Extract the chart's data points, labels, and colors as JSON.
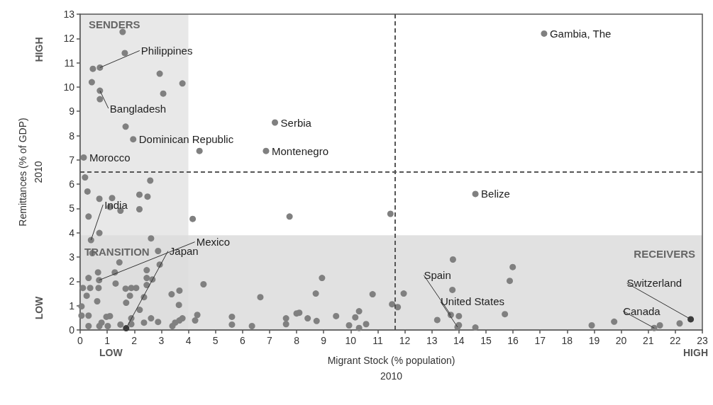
{
  "chart_data": {
    "type": "scatter",
    "xlabel": "Migrant Stock (% population)\n2010",
    "ylabel": "Remittances (% of GDP)\n2010",
    "xlim": [
      0,
      23
    ],
    "xticks": [
      0,
      1,
      2,
      3,
      4,
      5,
      6,
      7,
      8,
      9,
      10,
      11,
      12,
      13,
      14,
      15,
      16,
      17,
      18,
      19,
      20,
      21,
      22,
      23
    ],
    "ylim": [
      0,
      13
    ],
    "yticks": [
      0,
      1,
      2,
      3,
      4,
      5,
      6,
      7,
      8,
      9,
      10,
      11,
      12,
      13
    ],
    "grid": false,
    "marker": "circle",
    "series": [
      {
        "color": "#808080",
        "x": [
          1.57,
          1.65,
          0.47,
          0.73,
          0.43,
          2.94,
          3.78,
          0.73,
          0.73,
          3.07,
          1.68,
          1.96,
          4.41,
          7.2,
          6.87,
          17.15,
          0.13,
          0.18,
          2.59,
          0.27,
          0.71,
          1.18,
          2.19,
          2.49,
          1.1,
          1.49,
          2.19,
          0.31,
          4.16,
          7.74,
          0.71,
          2.62,
          0.4,
          0.45,
          2.88,
          1.45,
          2.94,
          0.66,
          1.28,
          2.46,
          0.31,
          0.7,
          2.46,
          2.67,
          0.1,
          0.37,
          0.68,
          1.31,
          1.68,
          1.89,
          2.07,
          2.46,
          0.24,
          1.84,
          2.36,
          3.38,
          3.67,
          4.56,
          0.63,
          1.7,
          0.05,
          3.65,
          6.66,
          2.2,
          0.05,
          0.31,
          0.97,
          1.1,
          1.89,
          2.62,
          3.78,
          4.33,
          4.25,
          5.61,
          5.61,
          6.35,
          8.0,
          7.61,
          7.61,
          0.31,
          0.71,
          1.02,
          1.49,
          1.89,
          2.36,
          2.88,
          3.41,
          3.51,
          3.67,
          0.79,
          14.61,
          11.47,
          13.78,
          15.99,
          8.94,
          15.88,
          13.76,
          8.71,
          10.81,
          11.96,
          11.53,
          11.74,
          8.1,
          13.7,
          14.0,
          15.7,
          10.31,
          9.46,
          10.17,
          8.41,
          8.74,
          13.2,
          9.94,
          10.57,
          10.31,
          13.95,
          14.0,
          14.61,
          18.91,
          19.74,
          21.22,
          21.43,
          22.16
        ],
        "values": [
          12.27,
          11.4,
          10.75,
          10.8,
          10.2,
          10.55,
          10.15,
          9.85,
          9.5,
          9.73,
          8.37,
          7.85,
          7.37,
          8.54,
          7.37,
          12.2,
          7.1,
          6.28,
          6.15,
          5.7,
          5.4,
          5.43,
          5.57,
          5.49,
          5.06,
          4.91,
          4.97,
          4.67,
          4.57,
          4.67,
          3.99,
          3.77,
          3.7,
          3.16,
          3.25,
          2.78,
          2.69,
          2.37,
          2.37,
          2.46,
          2.14,
          2.05,
          2.14,
          2.08,
          1.73,
          1.73,
          1.73,
          1.91,
          1.7,
          1.73,
          1.73,
          1.85,
          1.41,
          1.41,
          1.35,
          1.47,
          1.62,
          1.88,
          1.18,
          1.12,
          0.97,
          1.03,
          1.35,
          0.83,
          0.59,
          0.59,
          0.54,
          0.57,
          0.48,
          0.48,
          0.48,
          0.62,
          0.39,
          0.54,
          0.22,
          0.16,
          0.68,
          0.48,
          0.24,
          0.16,
          0.16,
          0.16,
          0.22,
          0.24,
          0.3,
          0.33,
          0.16,
          0.3,
          0.39,
          0.3,
          5.6,
          4.78,
          2.9,
          2.59,
          2.14,
          2.02,
          1.65,
          1.5,
          1.47,
          1.5,
          1.06,
          0.94,
          0.71,
          0.62,
          0.57,
          0.65,
          0.77,
          0.57,
          0.52,
          0.48,
          0.37,
          0.41,
          0.19,
          0.24,
          0.08,
          0.12,
          0.2,
          0.1,
          0.19,
          0.34,
          0.08,
          0.19,
          0.27
        ]
      },
      {
        "color": "#3c3c3c",
        "x": [
          1.7,
          22.57
        ],
        "values": [
          0.07,
          0.44
        ]
      }
    ],
    "ref_lines": [
      {
        "axis": "x",
        "value": 11.65,
        "color": "#555555",
        "line_style": "dashed"
      },
      {
        "axis": "y",
        "value": 6.5,
        "color": "#555555",
        "line_style": "dashed"
      }
    ],
    "bands": [
      {
        "axis": "x",
        "from": 0,
        "to": 4,
        "label": "SENDERS",
        "color": "#e8e8e8"
      },
      {
        "axis": "y",
        "from": 0,
        "to": 3.9,
        "label": "RECEIVERS",
        "color": "#dcdcdc"
      }
    ],
    "annotations": [
      {
        "text": "Philippines",
        "x": 0.73,
        "y": 10.8
      },
      {
        "text": "Gambia, The",
        "x": 17.15,
        "y": 12.2
      },
      {
        "text": "Bangladesh",
        "x": 0.73,
        "y": 9.85
      },
      {
        "text": "Serbia",
        "x": 7.2,
        "y": 8.54
      },
      {
        "text": "Dominican Republic",
        "x": 1.96,
        "y": 7.85
      },
      {
        "text": "Montenegro",
        "x": 6.87,
        "y": 7.37
      },
      {
        "text": "Morocco",
        "x": 0.13,
        "y": 7.1
      },
      {
        "text": "Belize",
        "x": 14.61,
        "y": 5.6
      },
      {
        "text": "India",
        "x": 0.4,
        "y": 3.7
      },
      {
        "text": "Mexico",
        "x": 0.7,
        "y": 2.05
      },
      {
        "text": "Japan",
        "x": 1.7,
        "y": 0.07
      },
      {
        "text": "Spain",
        "x": 13.7,
        "y": 0.62
      },
      {
        "text": "United States",
        "x": 13.95,
        "y": 0.12
      },
      {
        "text": "Switzerland",
        "x": 22.57,
        "y": 0.44
      },
      {
        "text": "Canada",
        "x": 21.22,
        "y": 0.08
      },
      "TRANSITION",
      "HIGH",
      "LOW",
      "LOW",
      "HIGH"
    ]
  }
}
